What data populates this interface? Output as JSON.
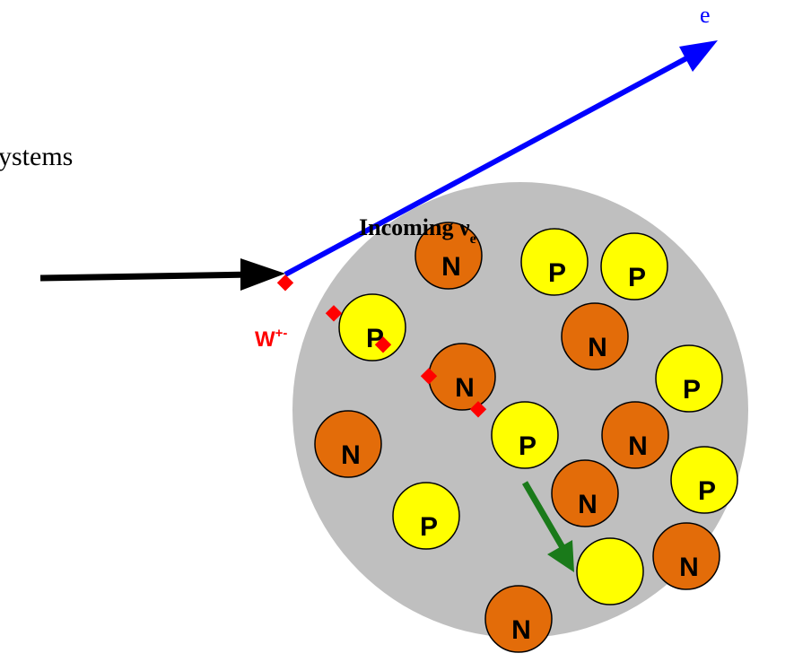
{
  "texts": {
    "heading": "ystems",
    "incoming": "Incoming ν",
    "incoming_subscript": "e",
    "electron": "e",
    "boson": "W",
    "boson_superscript": "+-"
  },
  "nodes": [
    {
      "label": "N"
    },
    {
      "label": "P"
    },
    {
      "label": "P"
    },
    {
      "label": "P"
    },
    {
      "label": "N"
    },
    {
      "label": "N"
    },
    {
      "label": "P"
    },
    {
      "label": "N"
    },
    {
      "label": "P"
    },
    {
      "label": "N"
    },
    {
      "label": "N"
    },
    {
      "label": "P"
    },
    {
      "label": "P"
    },
    {
      "label": "N"
    },
    {
      "label": "N"
    }
  ]
}
